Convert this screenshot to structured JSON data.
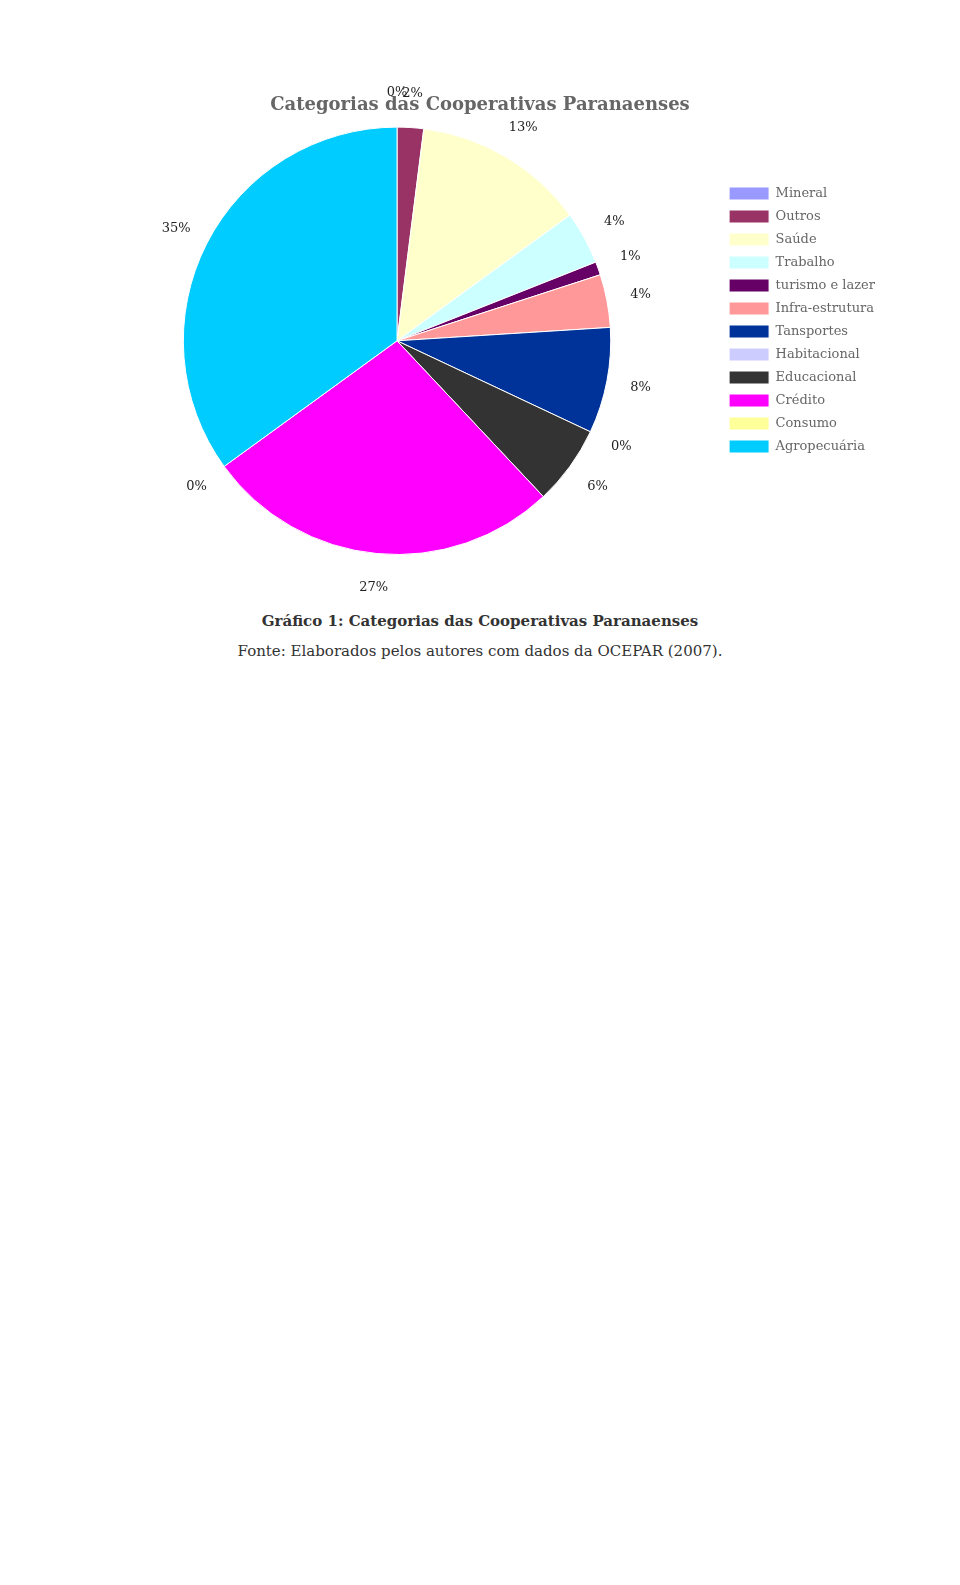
{
  "chart_data": {
    "type": "pie",
    "title": "Categorias das Cooperativas Paranaenses",
    "categories": [
      "Mineral",
      "Outros",
      "Saúde",
      "Trabalho",
      "turismo e lazer",
      "Infra-estrutura",
      "Tansportes",
      "Habitacional",
      "Educacional",
      "Crédito",
      "Consumo",
      "Agropecuária"
    ],
    "values": [
      0,
      2,
      13,
      4,
      1,
      4,
      8,
      0,
      6,
      27,
      0,
      35
    ],
    "value_labels": [
      "0%",
      "2%",
      "13%",
      "4%",
      "1%",
      "4%",
      "8%",
      "0%",
      "6%",
      "27%",
      "0%",
      "35%"
    ],
    "colors": [
      "#9999FF",
      "#993366",
      "#FFFFCC",
      "#CCFFFF",
      "#660066",
      "#FF9999",
      "#003399",
      "#CCCCFF",
      "#333333",
      "#FF00FF",
      "#FFFF99",
      "#00CCFF"
    ],
    "data_labels": true,
    "legend": "right",
    "annotations": [
      "Gráfico 1: Categorias das Cooperativas Paranaenses",
      "Fonte: Elaborados pelos autores com dados da OCEPAR (2007)."
    ]
  }
}
